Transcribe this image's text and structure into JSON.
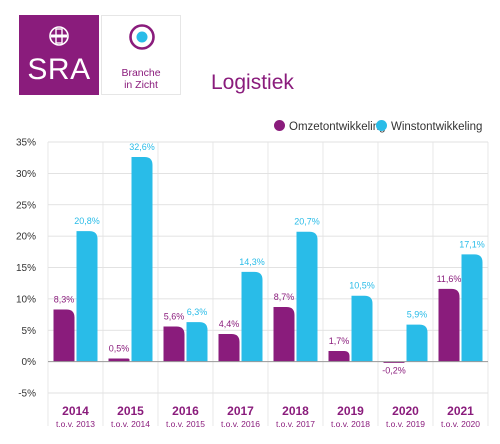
{
  "logos": {
    "sra_text": "SRA",
    "bz_line1": "Branche",
    "bz_line2": "in Zicht"
  },
  "colors": {
    "omzet": "#8a1c7c",
    "winst": "#29bce8",
    "brand": "#8a1c7c"
  },
  "chart_data": {
    "type": "bar",
    "title": "Logistiek",
    "categories": [
      "2014",
      "2015",
      "2016",
      "2017",
      "2018",
      "2019",
      "2020",
      "2021"
    ],
    "subcategories": [
      "t.o.v. 2013",
      "t.o.v. 2014",
      "t.o.v. 2015",
      "t.o.v. 2016",
      "t.o.v. 2017",
      "t.o.v. 2018",
      "t.o.v. 2019",
      "t.o.v. 2020"
    ],
    "series": [
      {
        "name": "Omzetontwikkeling",
        "values": [
          8.3,
          0.5,
          5.6,
          4.4,
          8.7,
          1.7,
          -0.2,
          11.6
        ],
        "labels": [
          "8,3%",
          "0,5%",
          "5,6%",
          "4,4%",
          "8,7%",
          "1,7%",
          "-0,2%",
          "11,6%"
        ]
      },
      {
        "name": "Winstontwikkeling",
        "values": [
          20.8,
          32.6,
          6.3,
          14.3,
          20.7,
          10.5,
          5.9,
          17.1
        ],
        "labels": [
          "20,8%",
          "32,6%",
          "6,3%",
          "14,3%",
          "20,7%",
          "10,5%",
          "5,9%",
          "17,1%"
        ]
      }
    ],
    "yticks": [
      "35%",
      "30%",
      "25%",
      "20%",
      "15%",
      "10%",
      "5%",
      "0%",
      "-5%"
    ],
    "ylim": [
      -5,
      35
    ],
    "grid": true,
    "legend_position": "top-right",
    "xlabel": "",
    "ylabel": ""
  }
}
